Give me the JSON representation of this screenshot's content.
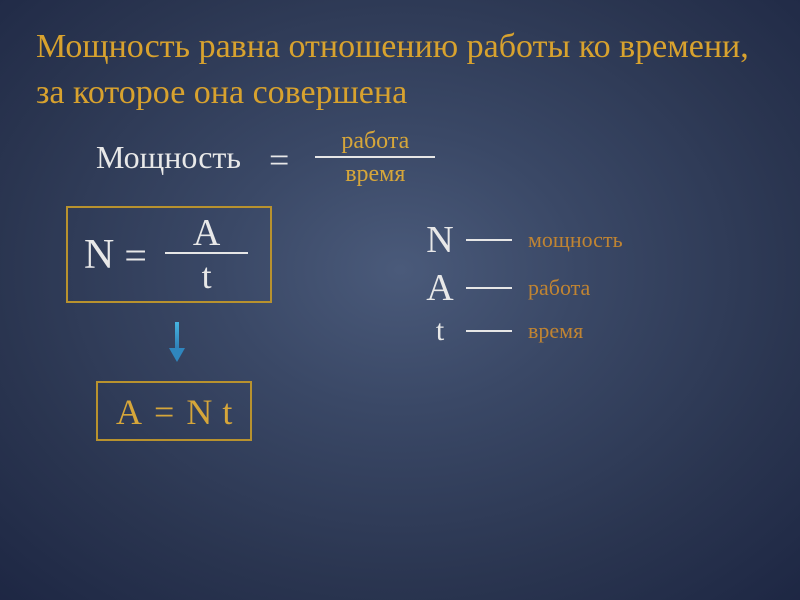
{
  "colors": {
    "title": "#d8a22e",
    "white": "#e8e8e8",
    "yellow": "#d6a63a",
    "brown": "#c08432",
    "boxBorder": "#b8922e"
  },
  "title": "Мощность равна  отношению работы ко времени, за которое она совершена",
  "worddef": {
    "power": "Мощность",
    "eq": "=",
    "num": "работа",
    "den": "время"
  },
  "formula1": {
    "N": "N",
    "eq": "=",
    "A": "A",
    "t": "t"
  },
  "formula2": {
    "A": "A",
    "eq": "=",
    "N": "N",
    "t": "t"
  },
  "legend": {
    "n_sym": "N",
    "n_txt": "мощность",
    "a_sym": "A",
    "a_txt": "работа",
    "t_sym": "t",
    "t_txt": "время"
  }
}
